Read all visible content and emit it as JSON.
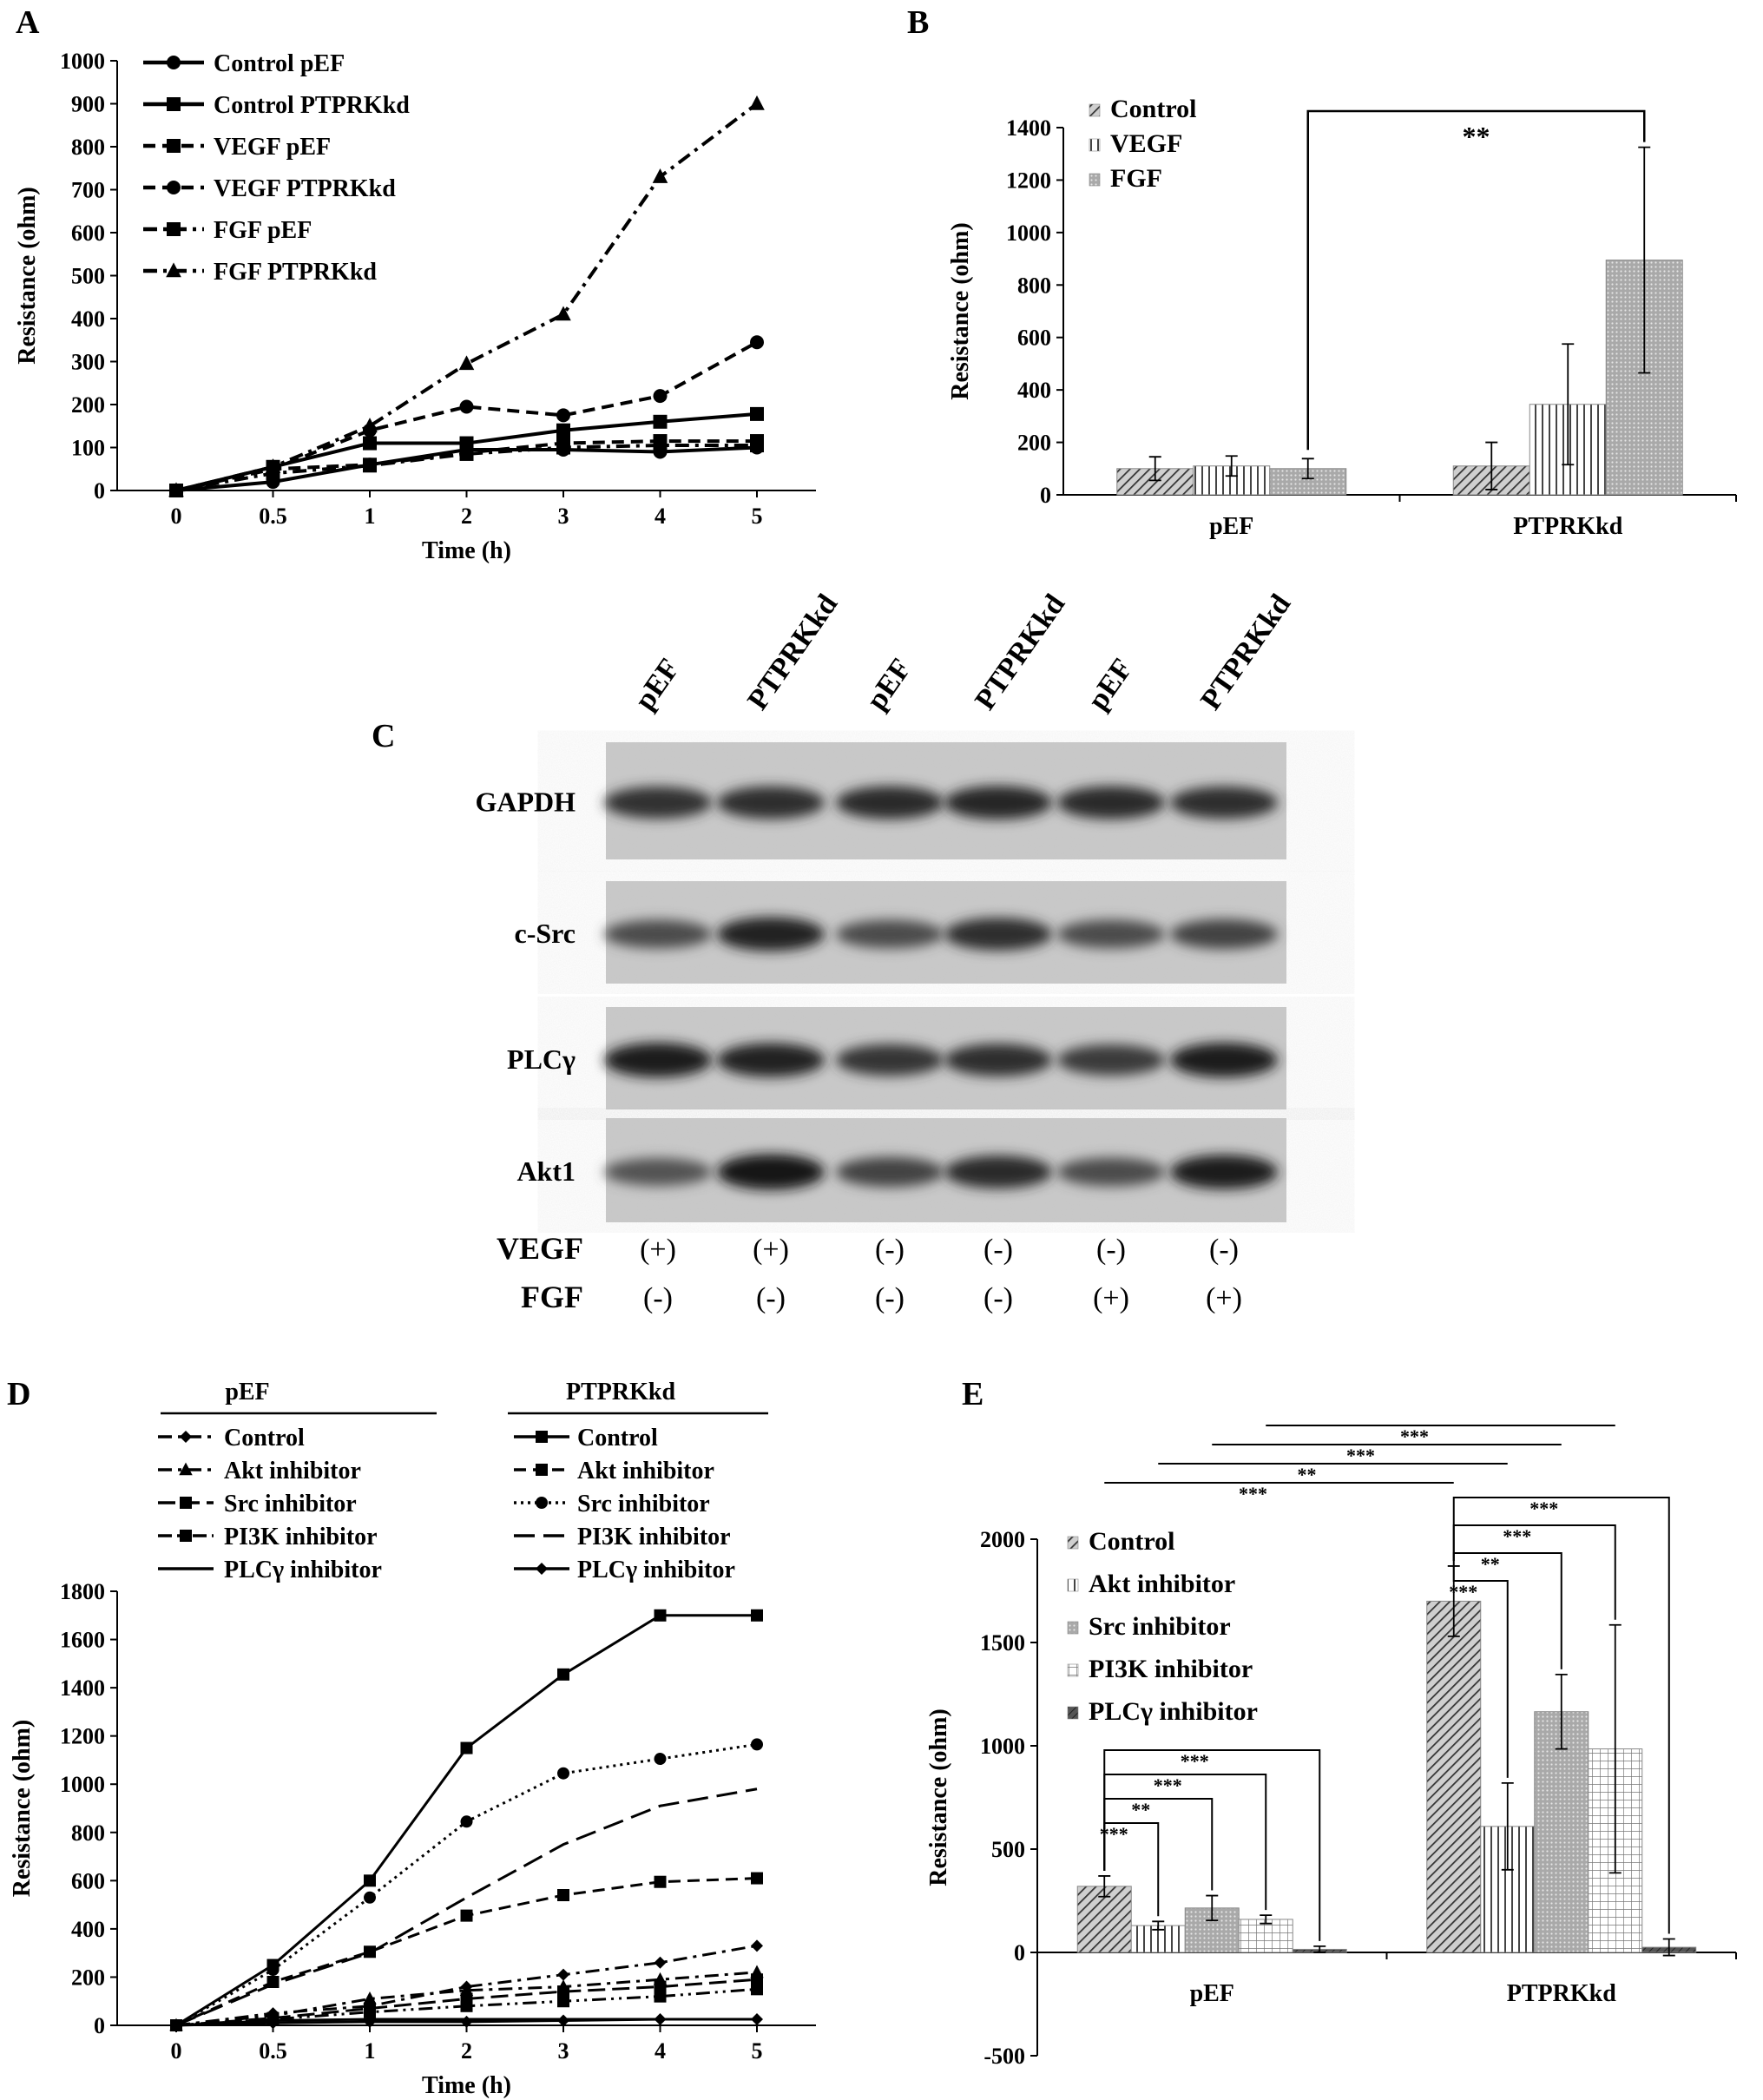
{
  "chart_data": [
    {
      "panel": "A",
      "type": "line",
      "xlabel": "Time (h)",
      "ylabel": "Resistance (ohm)",
      "categories": [
        "0",
        "0.5",
        "1",
        "2",
        "3",
        "4",
        "5"
      ],
      "ylim": [
        0,
        1000
      ],
      "yticks": [
        0,
        100,
        200,
        300,
        400,
        500,
        600,
        700,
        800,
        900,
        1000
      ],
      "legend_position": "top-left",
      "series": [
        {
          "name": "Control pEF",
          "marker": "circle",
          "dash": "solid",
          "values": [
            0,
            20,
            60,
            95,
            95,
            90,
            100
          ]
        },
        {
          "name": "Control PTPRKkd",
          "marker": "square",
          "dash": "solid",
          "values": [
            0,
            55,
            110,
            110,
            140,
            160,
            178
          ]
        },
        {
          "name": "VEGF pEF",
          "marker": "square",
          "dash": "dash",
          "values": [
            0,
            50,
            60,
            88,
            110,
            115,
            115
          ]
        },
        {
          "name": "VEGF PTPRKkd",
          "marker": "circle",
          "dash": "dash",
          "values": [
            0,
            50,
            140,
            195,
            175,
            220,
            345
          ]
        },
        {
          "name": "FGF pEF",
          "marker": "square",
          "dash": "dashdot",
          "values": [
            0,
            40,
            58,
            85,
            100,
            105,
            105
          ]
        },
        {
          "name": "FGF PTPRKkd",
          "marker": "triangle",
          "dash": "dashdot",
          "values": [
            0,
            55,
            150,
            295,
            410,
            730,
            900
          ]
        }
      ]
    },
    {
      "panel": "B",
      "type": "bar",
      "ylabel": "Resistance (ohm)",
      "categories": [
        "pEF",
        "PTPRKkd"
      ],
      "ylim": [
        0,
        1400
      ],
      "yticks": [
        0,
        200,
        400,
        600,
        800,
        1000,
        1200,
        1400
      ],
      "legend_position": "top-left",
      "series": [
        {
          "name": "Control",
          "pattern": "diag",
          "values": [
            100,
            110
          ],
          "errors": [
            45,
            90
          ]
        },
        {
          "name": "VEGF",
          "pattern": "vert",
          "values": [
            110,
            345
          ],
          "errors": [
            38,
            230
          ]
        },
        {
          "name": "FGF",
          "pattern": "dots",
          "values": [
            100,
            895
          ],
          "errors": [
            38,
            430
          ]
        }
      ],
      "significance": [
        {
          "label": "**",
          "from": "pEF FGF",
          "to": "PTPRKkd FGF"
        }
      ]
    },
    {
      "panel": "D",
      "type": "line",
      "xlabel": "Time (h)",
      "ylabel": "Resistance (ohm)",
      "categories": [
        "0",
        "0.5",
        "1",
        "2",
        "3",
        "4",
        "5"
      ],
      "ylim": [
        0,
        1800
      ],
      "yticks": [
        0,
        200,
        400,
        600,
        800,
        1000,
        1200,
        1400,
        1600,
        1800
      ],
      "legend_groups": [
        "pEF",
        "PTPRKkd"
      ],
      "series": [
        {
          "group": "pEF",
          "name": "Control",
          "marker": "diamond",
          "dash": "dashdot",
          "values": [
            0,
            50,
            80,
            160,
            210,
            260,
            330
          ]
        },
        {
          "group": "pEF",
          "name": "Akt inhibitor",
          "marker": "triangle",
          "dash": "dashdot",
          "values": [
            0,
            40,
            110,
            145,
            160,
            190,
            220
          ]
        },
        {
          "group": "pEF",
          "name": "Src inhibitor",
          "marker": "square",
          "dash": "longdash",
          "values": [
            0,
            30,
            70,
            110,
            140,
            160,
            190
          ]
        },
        {
          "group": "pEF",
          "name": "PI3K inhibitor",
          "marker": "square",
          "dash": "dashdotdot",
          "values": [
            0,
            25,
            55,
            80,
            100,
            120,
            150
          ]
        },
        {
          "group": "pEF",
          "name": "PLCγ inhibitor",
          "marker": "none",
          "dash": "solid",
          "values": [
            0,
            20,
            25,
            25,
            25,
            25,
            25
          ]
        },
        {
          "group": "PTPRKkd",
          "name": "Control",
          "marker": "square",
          "dash": "solid",
          "values": [
            0,
            250,
            600,
            1150,
            1455,
            1700,
            1700
          ]
        },
        {
          "group": "PTPRKkd",
          "name": "Akt inhibitor",
          "marker": "square",
          "dash": "dash",
          "values": [
            0,
            180,
            305,
            455,
            540,
            595,
            610
          ]
        },
        {
          "group": "PTPRKkd",
          "name": "Src inhibitor",
          "marker": "circle",
          "dash": "dot",
          "values": [
            0,
            230,
            530,
            845,
            1045,
            1105,
            1165
          ]
        },
        {
          "group": "PTPRKkd",
          "name": "PI3K inhibitor",
          "marker": "none",
          "dash": "bigdash",
          "values": [
            0,
            170,
            300,
            530,
            750,
            910,
            980
          ]
        },
        {
          "group": "PTPRKkd",
          "name": "PLCγ inhibitor",
          "marker": "diamond",
          "dash": "solid",
          "values": [
            0,
            10,
            15,
            15,
            20,
            25,
            25
          ]
        }
      ]
    },
    {
      "panel": "E",
      "type": "bar",
      "ylabel": "Resistance (ohm)",
      "categories": [
        "pEF",
        "PTPRKkd"
      ],
      "ylim": [
        -500,
        2000
      ],
      "yticks": [
        -500,
        0,
        500,
        1000,
        1500,
        2000
      ],
      "legend_position": "top-left",
      "series": [
        {
          "name": "Control",
          "pattern": "diag",
          "values": [
            320,
            1700
          ],
          "errors": [
            50,
            170
          ]
        },
        {
          "name": "Akt inhibitor",
          "pattern": "vert",
          "values": [
            130,
            610
          ],
          "errors": [
            20,
            210
          ]
        },
        {
          "name": "Src inhibitor",
          "pattern": "dots",
          "values": [
            215,
            1165
          ],
          "errors": [
            60,
            180
          ]
        },
        {
          "name": "PI3K inhibitor",
          "pattern": "grid",
          "values": [
            160,
            985
          ],
          "errors": [
            20,
            600
          ]
        },
        {
          "name": "PLCγ inhibitor",
          "pattern": "dark",
          "values": [
            15,
            25
          ],
          "errors": [
            15,
            40
          ]
        }
      ],
      "significance": [
        {
          "label": "***",
          "group": "pEF",
          "from": "Control",
          "to": "Akt inhibitor"
        },
        {
          "label": "**",
          "group": "pEF",
          "from": "Control",
          "to": "Src inhibitor"
        },
        {
          "label": "***",
          "group": "pEF",
          "from": "Control",
          "to": "PI3K inhibitor"
        },
        {
          "label": "***",
          "group": "pEF",
          "from": "Control",
          "to": "PLCγ inhibitor"
        },
        {
          "label": "***",
          "group": "PTPRKkd",
          "from": "Control",
          "to": "Akt inhibitor"
        },
        {
          "label": "**",
          "group": "PTPRKkd",
          "from": "Control",
          "to": "Src inhibitor"
        },
        {
          "label": "***",
          "group": "PTPRKkd",
          "from": "Control",
          "to": "PI3K inhibitor"
        },
        {
          "label": "***",
          "group": "PTPRKkd",
          "from": "Control",
          "to": "PLCγ inhibitor"
        },
        {
          "label": "***",
          "between": [
            "pEF Control",
            "PTPRKkd Control"
          ]
        },
        {
          "label": "**",
          "between": [
            "pEF Akt inhibitor",
            "PTPRKkd Akt inhibitor"
          ]
        },
        {
          "label": "***",
          "between": [
            "pEF Src inhibitor",
            "PTPRKkd Src inhibitor"
          ]
        },
        {
          "label": "***",
          "between": [
            "pEF PI3K inhibitor",
            "PTPRKkd PI3K inhibitor"
          ]
        }
      ]
    }
  ],
  "panels": {
    "a": "A",
    "b": "B",
    "c": "C",
    "d": "D",
    "e": "E"
  },
  "blot": {
    "lanes": [
      "pEF",
      "PTPRKkd",
      "pEF",
      "PTPRKkd",
      "pEF",
      "PTPRKkd"
    ],
    "rows": [
      "GAPDH",
      "c-Src",
      "PLCγ",
      "Akt1"
    ],
    "treatments": [
      {
        "name": "VEGF",
        "values": [
          "(+)",
          "(+)",
          "(-)",
          "(-)",
          "(-)",
          "(-)"
        ]
      },
      {
        "name": "FGF",
        "values": [
          "(-)",
          "(-)",
          "(-)",
          "(-)",
          "(+)",
          "(+)"
        ]
      }
    ],
    "band_intensity": [
      [
        0.75,
        0.78,
        0.8,
        0.82,
        0.8,
        0.76
      ],
      [
        0.55,
        0.85,
        0.55,
        0.78,
        0.55,
        0.62
      ],
      [
        0.9,
        0.85,
        0.72,
        0.78,
        0.68,
        0.9
      ],
      [
        0.5,
        0.95,
        0.62,
        0.8,
        0.55,
        0.88
      ]
    ]
  }
}
